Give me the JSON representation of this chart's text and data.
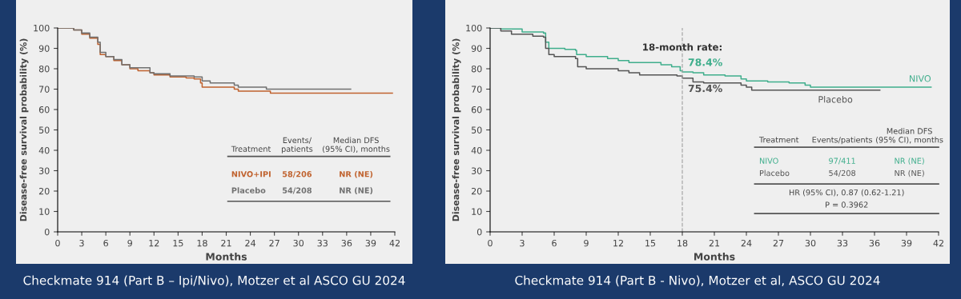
{
  "chart_data": [
    {
      "type": "step",
      "title": "Checkmate 914 (Part B – Ipi/Nivo), Motzer et al ASCO GU 2024",
      "xlabel": "Months",
      "ylabel": "Disease-free survival probability (%)",
      "xlim": [
        0,
        42
      ],
      "xticks": [
        0,
        3,
        6,
        9,
        12,
        15,
        18,
        21,
        24,
        27,
        30,
        33,
        36,
        39,
        42
      ],
      "ylim": [
        0,
        100
      ],
      "yticks": [
        0,
        10,
        20,
        30,
        40,
        50,
        60,
        70,
        80,
        90,
        100
      ],
      "grid": false,
      "legend": false,
      "series": [
        {
          "name": "NIVO+IPI",
          "color": "#c0622e",
          "x": [
            0,
            2,
            3,
            4,
            5,
            5.3,
            6,
            7,
            8,
            9,
            10,
            11.5,
            12,
            14,
            16,
            17,
            17.8,
            18,
            22,
            22.5,
            26.5,
            41.7
          ],
          "values": [
            100,
            99,
            97,
            95,
            92,
            87,
            86,
            84,
            82,
            80,
            79,
            78,
            77,
            76,
            75.5,
            75,
            73,
            71,
            70,
            69,
            68,
            68
          ]
        },
        {
          "name": "Placebo",
          "color": "#707070",
          "x": [
            0,
            2,
            3,
            4,
            5,
            5.3,
            6,
            7,
            8,
            9,
            11.5,
            12,
            14,
            17,
            18,
            19,
            22,
            22.5,
            26,
            36.5
          ],
          "values": [
            100,
            99,
            97.5,
            95.5,
            93,
            88,
            86,
            84.5,
            82,
            80.5,
            78,
            77.5,
            76.5,
            76,
            74,
            73,
            72,
            71,
            70,
            70
          ]
        }
      ],
      "annotations": [
        "Treatment",
        "Events/\npatients",
        "Median DFS\n(95% CI), months",
        "58/206",
        "NR (NE)",
        "54/208",
        "NR (NE)"
      ]
    },
    {
      "type": "step",
      "title": "Checkmate 914 (Part B - Nivo), Motzer et al, ASCO GU 2024",
      "xlabel": "Months",
      "ylabel": "Disease-free survival probability (%)",
      "xlim": [
        0,
        42
      ],
      "xticks": [
        0,
        3,
        6,
        9,
        12,
        15,
        18,
        21,
        24,
        27,
        30,
        33,
        36,
        39,
        42
      ],
      "ylim": [
        0,
        100
      ],
      "yticks": [
        0,
        10,
        20,
        30,
        40,
        50,
        60,
        70,
        80,
        90,
        100
      ],
      "grid": false,
      "legend": false,
      "series": [
        {
          "name": "NIVO",
          "color": "#3fae8c",
          "x": [
            0,
            1,
            3,
            5,
            5.2,
            5.5,
            7,
            8,
            8.1,
            9,
            11,
            12,
            13,
            16,
            17,
            17.8,
            18,
            19,
            20,
            22,
            23.5,
            24,
            26,
            28,
            29.5,
            30,
            41.3
          ],
          "values": [
            100,
            99.5,
            98,
            97.5,
            93,
            90,
            89.5,
            89,
            87,
            86,
            85,
            84,
            83,
            82,
            81,
            79,
            78.4,
            78,
            77,
            76.5,
            75,
            74,
            73.5,
            73,
            72,
            71,
            71
          ]
        },
        {
          "name": "Placebo",
          "color": "#555555",
          "x": [
            0,
            1,
            2,
            4,
            5,
            5.2,
            5.5,
            6,
            8,
            8.2,
            9,
            12,
            13,
            14,
            17.5,
            18,
            19,
            20,
            23.5,
            24,
            24.5,
            36.5
          ],
          "values": [
            100,
            98.5,
            97,
            96,
            95.5,
            90,
            87,
            86,
            85,
            81,
            80,
            79,
            78,
            77,
            76.5,
            75.4,
            73.5,
            73,
            72,
            71,
            69.5,
            69.5
          ]
        }
      ],
      "ref_lines": [
        {
          "axis": "x",
          "value": 18,
          "label": "18-month rate:",
          "color": "#aaaaaa",
          "line_style": "dashed"
        }
      ],
      "annotations": [
        "Treatment",
        "Events/patients",
        "Median DFS\n(95% CI), months",
        "97/411",
        "NR (NE)",
        "54/208",
        "NR (NE)",
        "HR (95% CI), 0.87 (0.62-1.21)",
        "P = 0.3962",
        {
          "text": "78.4%",
          "x": 18,
          "y": 78.4
        },
        {
          "text": "75.4%",
          "x": 18,
          "y": 75.4
        }
      ]
    }
  ]
}
